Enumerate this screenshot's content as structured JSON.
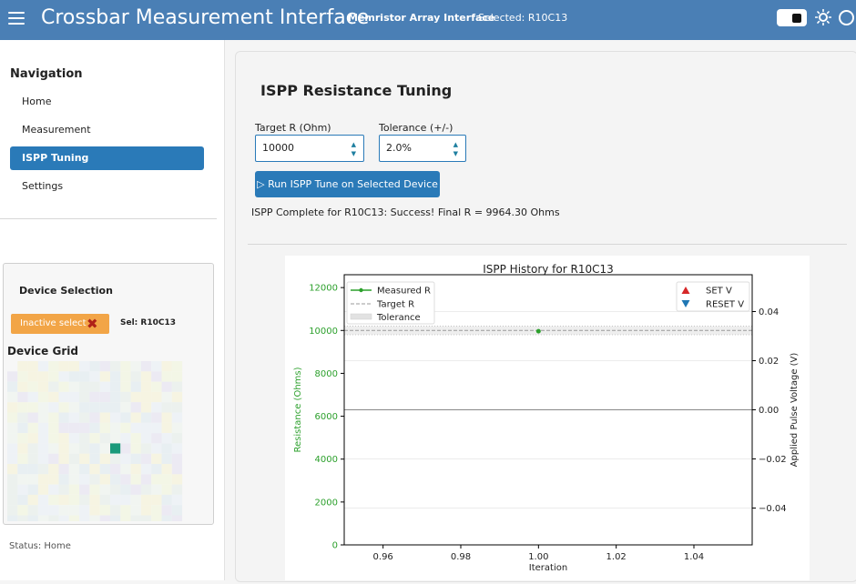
{
  "header": {
    "title": "Crossbar Measurement Interface",
    "subtitle": "Memristor Array Interface",
    "selected": "Selected: R10C13"
  },
  "sidebar": {
    "title": "Navigation",
    "items": [
      {
        "label": "Home"
      },
      {
        "label": "Measurement"
      },
      {
        "label": "ISPP Tuning",
        "active": true
      },
      {
        "label": "Settings"
      }
    ],
    "status": "Status: Home"
  },
  "device_selection": {
    "title": "Device Selection",
    "inactive_button": "Inactive select",
    "selected_label": "Sel: R10C13",
    "grid_title": "Device Grid"
  },
  "main": {
    "title": "ISPP Resistance Tuning",
    "target_label": "Target R (Ohm)",
    "target_value": "10000",
    "tolerance_label": "Tolerance (+/-)",
    "tolerance_value": "2.0%",
    "run_button": "Run ISPP Tune on Selected Device",
    "result": "ISPP Complete for R10C13: Success! Final R = 9964.30 Ohms"
  },
  "chart_data": {
    "type": "line",
    "title": "ISPP History for R10C13",
    "xlabel": "Iteration",
    "ylabel": "Resistance (Ohms)",
    "y2label": "Applied Pulse Voltage (V)",
    "xlim": [
      0.95,
      1.055
    ],
    "ylim": [
      0,
      12600
    ],
    "y2lim": [
      -0.055,
      0.055
    ],
    "xticks": [
      0.96,
      0.98,
      1.0,
      1.02,
      1.04
    ],
    "yticks": [
      0,
      2000,
      4000,
      6000,
      8000,
      10000,
      12000
    ],
    "y2ticks": [
      -0.04,
      -0.02,
      0.0,
      0.02,
      0.04
    ],
    "series": [
      {
        "name": "Measured R",
        "x": [
          1.0
        ],
        "y": [
          9964.3
        ],
        "color": "#2ca02c"
      }
    ],
    "target": 10000,
    "tolerance_pct": 2.0,
    "legend_left": [
      "Measured R",
      "Target R",
      "Tolerance"
    ],
    "legend_right": [
      "SET V",
      "RESET V"
    ],
    "legend_placement": "top-left and top-right",
    "colors": {
      "measured": "#2ca02c",
      "target": "#999999",
      "set": "#d62728",
      "reset": "#1f77b4",
      "zero_line": "#888888"
    }
  }
}
